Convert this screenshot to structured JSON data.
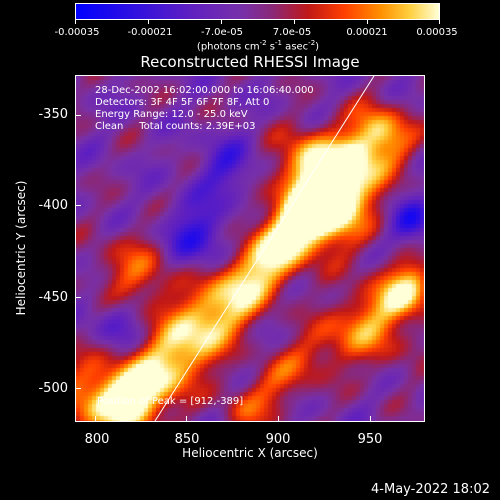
{
  "colorbar": {
    "ticks": [
      "-0.00035",
      "-0.00021",
      "-7.0e-05",
      "7.0e-05",
      "0.00021",
      "0.00035"
    ],
    "units_prefix": "(photons cm",
    "units_exp1": "-2",
    "units_mid": " s",
    "units_exp2": "-1",
    "units_mid2": " asec",
    "units_exp3": "-2",
    "units_suffix": ")"
  },
  "title": "Reconstructed RHESSI Image",
  "info_lines": {
    "time": "28-Dec-2002 16:02:00.000 to 16:06:40.000",
    "detectors": "Detectors: 3F 4F 5F 6F 7F 8F, Att 0",
    "energy": "Energy Range: 12.0 - 25.0 keV",
    "clean": "Clean     Total counts: 2.39E+03"
  },
  "peak_label": "Position of Peak = [912,-389]",
  "axes": {
    "xlabel": "Heliocentric X (arcsec)",
    "ylabel": "Heliocentric Y (arcsec)",
    "xticks": [
      "800",
      "850",
      "900",
      "950"
    ],
    "yticks": [
      "-350",
      "-400",
      "-450",
      "-500"
    ]
  },
  "timestamp": "4-May-2022 18:02",
  "colors": {
    "low": "#0000ff",
    "mid": "#7830a8",
    "high": "#ffffd8"
  }
}
